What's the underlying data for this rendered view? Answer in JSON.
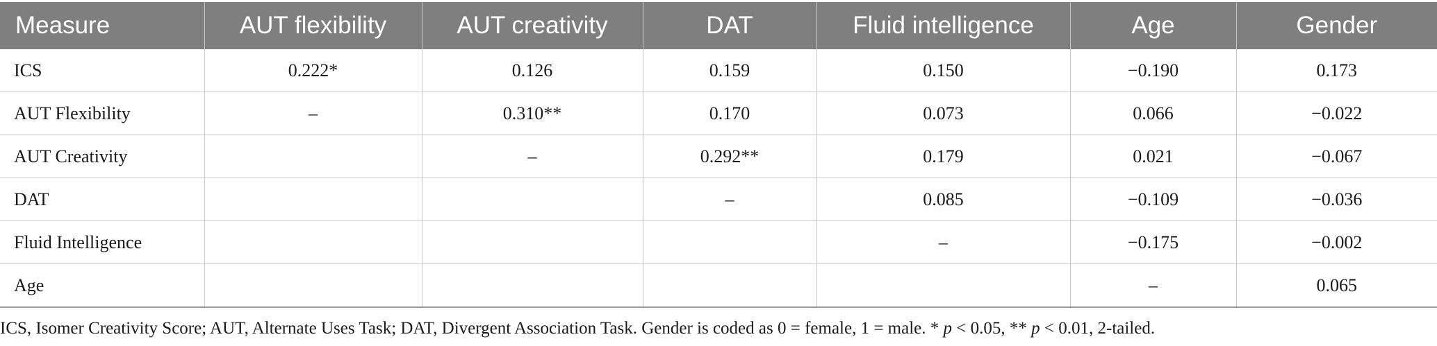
{
  "table": {
    "headers": [
      "Measure",
      "AUT flexibility",
      "AUT creativity",
      "DAT",
      "Fluid intelligence",
      "Age",
      "Gender"
    ],
    "rows": [
      [
        "ICS",
        "0.222*",
        "0.126",
        "0.159",
        "0.150",
        "−0.190",
        "0.173"
      ],
      [
        "AUT Flexibility",
        "–",
        "0.310**",
        "0.170",
        "0.073",
        "0.066",
        "−0.022"
      ],
      [
        "AUT Creativity",
        "",
        "–",
        "0.292**",
        "0.179",
        "0.021",
        "−0.067"
      ],
      [
        "DAT",
        "",
        "",
        "–",
        "0.085",
        "−0.109",
        "−0.036"
      ],
      [
        "Fluid Intelligence",
        "",
        "",
        "",
        "–",
        "−0.175",
        "−0.002"
      ],
      [
        "Age",
        "",
        "",
        "",
        "",
        "–",
        "0.065"
      ]
    ]
  },
  "footnote": {
    "text_a": "ICS, Isomer Creativity Score; AUT, Alternate Uses Task; DAT, Divergent Association Task. Gender is coded as 0 = female, 1 = male. * ",
    "p1": "p",
    "text_b": " < 0.05, ** ",
    "p2": "p",
    "text_c": " < 0.01, 2-tailed."
  }
}
